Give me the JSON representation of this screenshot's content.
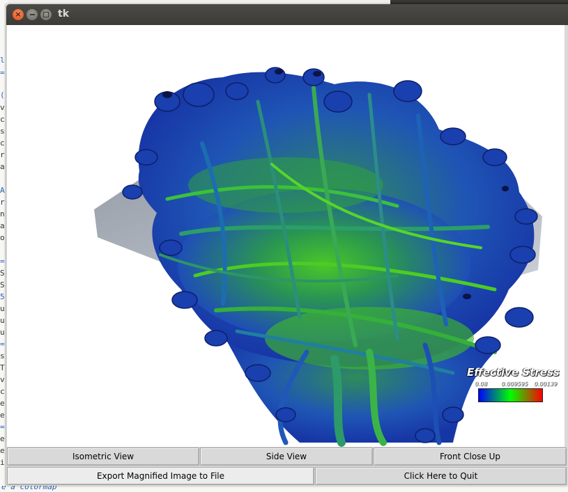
{
  "window": {
    "title": "tk"
  },
  "render": {
    "legend": {
      "title": "Effective Stress",
      "ticks": [
        "0.08",
        "0.009595",
        "0.00139"
      ],
      "colors": [
        "#0000ff",
        "#00ff00",
        "#ff0000"
      ]
    }
  },
  "buttons": {
    "isometric": "Isometric View",
    "side": "Side View",
    "front_close_up": "Front Close Up",
    "export": "Export Magnified Image to File",
    "quit": "Click Here to Quit"
  },
  "background_editor": {
    "bottom_text": "e a colormap"
  }
}
